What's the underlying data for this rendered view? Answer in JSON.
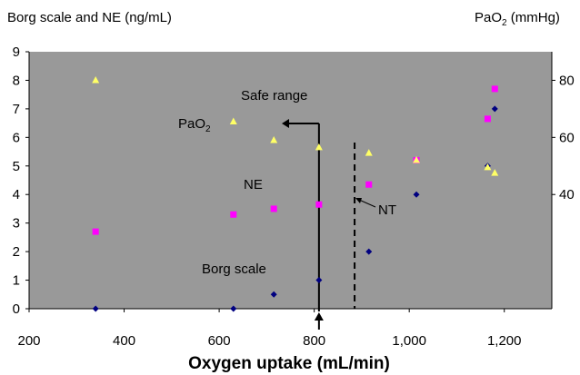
{
  "chart_data": {
    "type": "scatter",
    "ylabel_left": "Borg scale and NE (ng/mL)",
    "ylabel_right_main": "PaO",
    "ylabel_right_sub": "2",
    "ylabel_right_unit": " (mmHg)",
    "xlabel": "Oxygen uptake (mL/min)",
    "xlim": [
      200,
      1300
    ],
    "ylim_left": [
      0,
      9
    ],
    "ylim_right": [
      0,
      90
    ],
    "x_ticks": [
      {
        "value": 200,
        "label": "200"
      },
      {
        "value": 400,
        "label": "400"
      },
      {
        "value": 600,
        "label": "600"
      },
      {
        "value": 800,
        "label": "800"
      },
      {
        "value": 1000,
        "label": "1,000"
      },
      {
        "value": 1200,
        "label": "1,200"
      }
    ],
    "y_left_ticks": [
      {
        "value": 0,
        "label": "0"
      },
      {
        "value": 1,
        "label": "1"
      },
      {
        "value": 2,
        "label": "2"
      },
      {
        "value": 3,
        "label": "3"
      },
      {
        "value": 4,
        "label": "4"
      },
      {
        "value": 5,
        "label": "5"
      },
      {
        "value": 6,
        "label": "6"
      },
      {
        "value": 7,
        "label": "7"
      },
      {
        "value": 8,
        "label": "8"
      },
      {
        "value": 9,
        "label": "9"
      }
    ],
    "y_right_ticks": [
      {
        "value": 40,
        "label": "40"
      },
      {
        "value": 60,
        "label": "60"
      },
      {
        "value": 80,
        "label": "80"
      }
    ],
    "grid": false,
    "series": [
      {
        "label": "Borg scale",
        "marker": "diamond",
        "color": "#000080",
        "axis": "left",
        "points": [
          [
            340,
            0
          ],
          [
            630,
            0
          ],
          [
            715,
            0.5
          ],
          [
            810,
            1
          ],
          [
            915,
            2
          ],
          [
            1015,
            4
          ],
          [
            1165,
            5
          ],
          [
            1180,
            7
          ]
        ]
      },
      {
        "label": "NE",
        "marker": "square",
        "color": "#ff00ff",
        "axis": "left",
        "points": [
          [
            340,
            2.7
          ],
          [
            630,
            3.3
          ],
          [
            715,
            3.5
          ],
          [
            810,
            3.65
          ],
          [
            915,
            4.35
          ],
          [
            1015,
            5.2
          ],
          [
            1165,
            6.65
          ],
          [
            1180,
            7.7
          ]
        ]
      },
      {
        "label": "PaO",
        "label_sub": "2",
        "marker": "triangle",
        "color": "#ffff66",
        "axis": "right",
        "points": [
          [
            340,
            80
          ],
          [
            630,
            65.5
          ],
          [
            715,
            59
          ],
          [
            810,
            56.5
          ],
          [
            915,
            54.5
          ],
          [
            1015,
            52
          ],
          [
            1165,
            49.5
          ],
          [
            1180,
            47.5
          ]
        ]
      }
    ],
    "annotations": {
      "safe_range": {
        "text": "Safe range",
        "x": 810
      },
      "nt": {
        "text": "NT",
        "x": 885
      }
    }
  }
}
